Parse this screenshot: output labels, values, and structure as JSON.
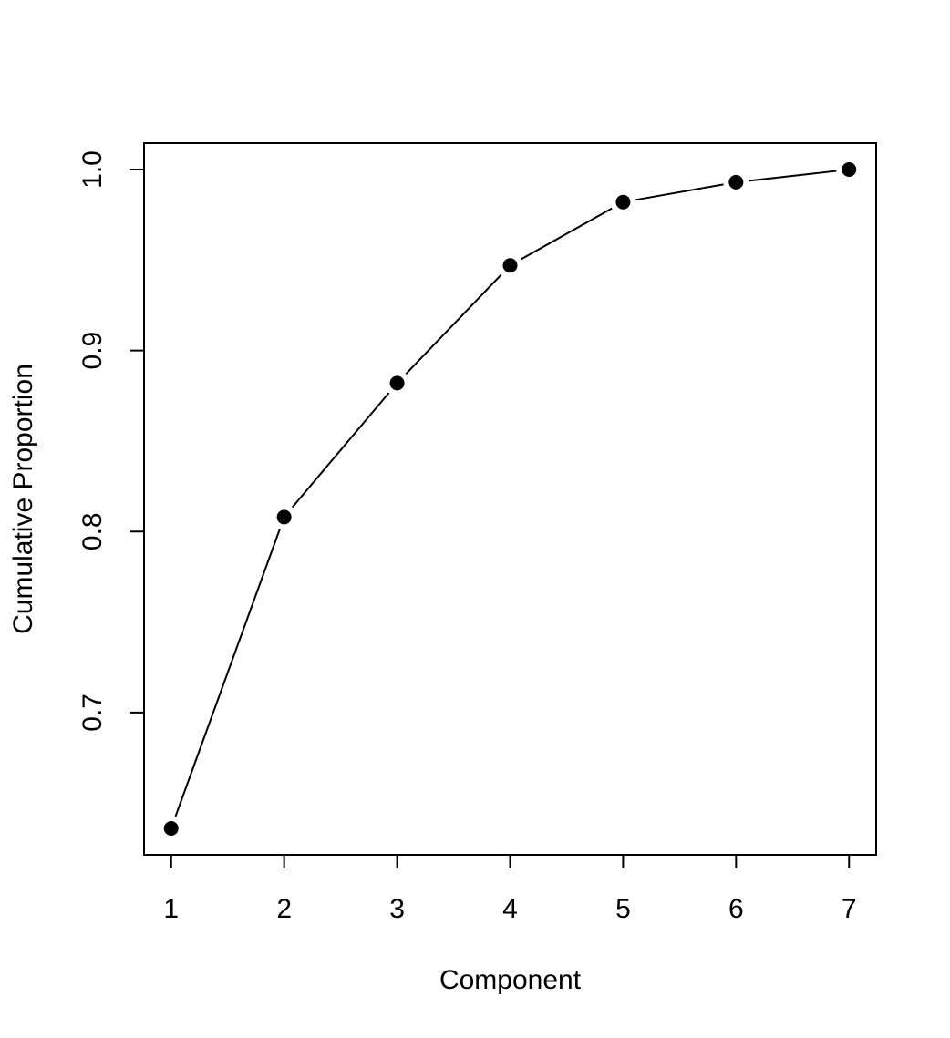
{
  "chart_data": {
    "type": "line",
    "title": "",
    "xlabel": "Component",
    "ylabel": "Cumulative Proportion",
    "x": [
      1,
      2,
      3,
      4,
      5,
      6,
      7
    ],
    "series": [
      {
        "values": [
          0.636,
          0.808,
          0.882,
          0.947,
          0.982,
          0.993,
          1.0
        ]
      }
    ],
    "xticks": [
      "1",
      "2",
      "3",
      "4",
      "5",
      "6",
      "7"
    ],
    "yticks": [
      "0.7",
      "0.8",
      "0.9",
      "1.0"
    ],
    "xlim": [
      0.76,
      7.24
    ],
    "ylim": [
      0.6214,
      1.0146
    ],
    "grid": false,
    "legend": "none",
    "style": {
      "line_color": "#000000",
      "point_color": "#000000",
      "marker": "filled-circle",
      "line_gaps_at_points": true
    }
  }
}
